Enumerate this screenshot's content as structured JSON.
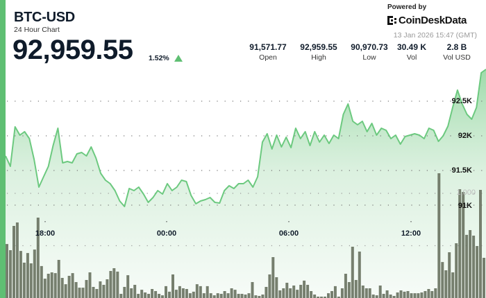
{
  "header": {
    "symbol": "BTC-USD",
    "subtitle": "24 Hour Chart",
    "price": "92,959.55",
    "change_pct": "1.52%",
    "change_direction": "up",
    "powered_by": "Powered by",
    "brand": "CoinDeskData",
    "timestamp": "13 Jan 2026 15:47 (GMT)"
  },
  "stats": [
    {
      "value": "91,571.77",
      "label": "Open"
    },
    {
      "value": "92,959.55",
      "label": "High"
    },
    {
      "value": "90,970.73",
      "label": "Low"
    },
    {
      "value": "30.49 K",
      "label": "Vol"
    },
    {
      "value": "2.8 B",
      "label": "Vol USD"
    }
  ],
  "colors": {
    "accent": "#5fbf73",
    "line": "#6cc97f",
    "volume_bar": "#6b7468"
  },
  "chart_data": {
    "type": "line",
    "x_ticks": [
      "18:00",
      "00:00",
      "06:00",
      "12:00"
    ],
    "y_ticks": [
      {
        "value": 92500,
        "label": "92.5K"
      },
      {
        "value": 92000,
        "label": "92K"
      },
      {
        "value": 91500,
        "label": "91.5K"
      },
      {
        "value": 91000,
        "label": "91K"
      }
    ],
    "volume_ticks": [
      {
        "value": 1000,
        "label": "1,000"
      },
      {
        "value": 500,
        "label": ""
      }
    ],
    "grid": true,
    "series": [
      {
        "type": "area-line",
        "values": [
          91710,
          91560,
          92130,
          92010,
          92060,
          91960,
          91660,
          91260,
          91410,
          91560,
          91860,
          92110,
          91610,
          91630,
          91610,
          91740,
          91760,
          91710,
          91840,
          91680,
          91460,
          91360,
          91310,
          91210,
          91060,
          90980,
          91240,
          91210,
          91260,
          91160,
          91040,
          91110,
          91210,
          91160,
          91310,
          91210,
          91260,
          91360,
          91340,
          91140,
          91020,
          91060,
          91080,
          91110,
          91040,
          91030,
          91210,
          91280,
          91240,
          91310,
          91310,
          91360,
          91260,
          91410,
          91910,
          92030,
          91810,
          92010,
          91840,
          91980,
          91830,
          92110,
          91960,
          92060,
          91860,
          92060,
          91910,
          92010,
          91890,
          92010,
          91960,
          92310,
          92460,
          92210,
          92160,
          92210,
          92060,
          92180,
          92010,
          92110,
          92080,
          91960,
          92010,
          91880,
          91990,
          92010,
          92030,
          92010,
          91960,
          92110,
          92080,
          91920,
          92000,
          92140,
          92410,
          92660,
          92460,
          92310,
          92240,
          92410,
          92910,
          92960
        ]
      },
      {
        "type": "volume-bar",
        "values": [
          516,
          457,
          689,
          722,
          450,
          338,
          430,
          331,
          463,
          768,
          305,
          185,
          232,
          245,
          238,
          364,
          192,
          132,
          212,
          238,
          152,
          99,
          99,
          172,
          245,
          106,
          86,
          159,
          126,
          179,
          258,
          285,
          252,
          40,
          106,
          218,
          93,
          126,
          40,
          79,
          53,
          40,
          86,
          66,
          40,
          26,
          113,
          60,
          225,
          79,
          113,
          93,
          86,
          46,
          60,
          132,
          113,
          46,
          113,
          46,
          26,
          46,
          40,
          66,
          46,
          93,
          79,
          40,
          40,
          33,
          46,
          152,
          26,
          20,
          33,
          106,
          225,
          391,
          199,
          73,
          93,
          146,
          93,
          119,
          79,
          126,
          166,
          126,
          66,
          33,
          13,
          13,
          13,
          46,
          66,
          113,
          13,
          93,
          232,
          152,
          490,
          172,
          444,
          119,
          93,
          93,
          33,
          26,
          119,
          40,
          73,
          33,
          20,
          53,
          73,
          60,
          66,
          46,
          46,
          46,
          53,
          66,
          86,
          66,
          93,
          1192,
          344,
          265,
          437,
          245,
          523,
          1040,
          1013,
          603,
          649,
          596,
          497,
          1033,
          384
        ]
      }
    ]
  }
}
